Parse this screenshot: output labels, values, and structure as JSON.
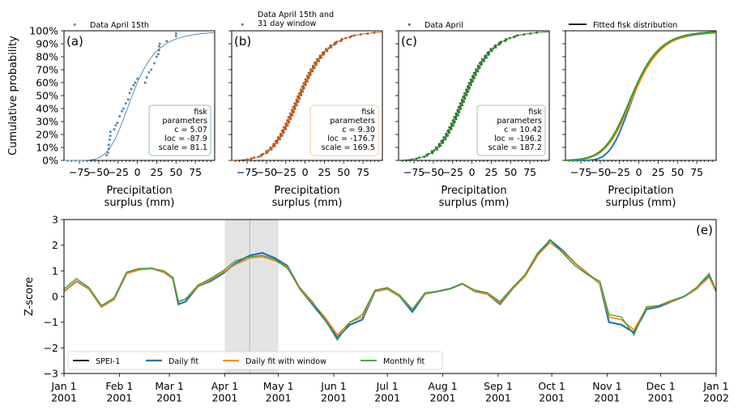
{
  "chart_data": [
    {
      "type": "scatter",
      "panel_label": "(a)",
      "legend": "Data April 15th",
      "ylabel": "Cumulative probability",
      "xlabel": "Precipitation\nsurplus (mm)",
      "xlim": [
        -95,
        100
      ],
      "ylim": [
        0,
        1
      ],
      "xticks": [
        -75,
        -50,
        -25,
        0,
        25,
        50,
        75
      ],
      "yticks": [
        "0%",
        "10%",
        "20%",
        "30%",
        "40%",
        "50%",
        "60%",
        "70%",
        "80%",
        "90%",
        "100%"
      ],
      "color": "#4f7fa6",
      "points": [
        [
          -40,
          0.04
        ],
        [
          -38,
          0.06
        ],
        [
          -37,
          0.09
        ],
        [
          -37,
          0.12
        ],
        [
          -36,
          0.16
        ],
        [
          -35,
          0.19
        ],
        [
          -35,
          0.22
        ],
        [
          -30,
          0.24
        ],
        [
          -28,
          0.27
        ],
        [
          -26,
          0.29
        ],
        [
          -23,
          0.34
        ],
        [
          -20,
          0.38
        ],
        [
          -18,
          0.4
        ],
        [
          -15,
          0.44
        ],
        [
          -12,
          0.47
        ],
        [
          -10,
          0.52
        ],
        [
          -8,
          0.55
        ],
        [
          -5,
          0.58
        ],
        [
          -3,
          0.6
        ],
        [
          0,
          0.63
        ],
        [
          10,
          0.6
        ],
        [
          12,
          0.64
        ],
        [
          15,
          0.68
        ],
        [
          18,
          0.7
        ],
        [
          22,
          0.75
        ],
        [
          25,
          0.8
        ],
        [
          27,
          0.82
        ],
        [
          28,
          0.85
        ],
        [
          28,
          0.88
        ],
        [
          29,
          0.9
        ],
        [
          38,
          0.92
        ],
        [
          50,
          0.96
        ],
        [
          50,
          0.98
        ]
      ],
      "params_label": "fisk\nparameters\nc = 5.07\nloc = -87.9\nscale = 81.1",
      "dist": {
        "c": 5.07,
        "loc": -87.9,
        "scale": 81.1
      }
    },
    {
      "type": "scatter",
      "panel_label": "(b)",
      "legend": "Data April 15th and\n31 day window",
      "xlabel": "Precipitation\nsurplus (mm)",
      "xlim": [
        -95,
        100
      ],
      "ylim": [
        0,
        1
      ],
      "xticks": [
        -75,
        -50,
        -25,
        0,
        25,
        50,
        75
      ],
      "color": "#b65a1a",
      "params_label": "fisk\nparameters\nc = 9.30\nloc = -176.7\nscale = 169.5",
      "dist": {
        "c": 9.3,
        "loc": -176.7,
        "scale": 169.5
      }
    },
    {
      "type": "scatter",
      "panel_label": "(c)",
      "legend": "Data April",
      "xlabel": "Precipitation\nsurplus (mm)",
      "xlim": [
        -95,
        100
      ],
      "ylim": [
        0,
        1
      ],
      "xticks": [
        -75,
        -50,
        -25,
        0,
        25,
        50,
        75
      ],
      "color": "#2e7a2e",
      "params_label": "fisk\nparameters\nc = 10.42\nloc = -196.2\nscale = 187.2",
      "dist": {
        "c": 10.42,
        "loc": -196.2,
        "scale": 187.2
      }
    },
    {
      "type": "line",
      "panel_label": "",
      "legend": "Fitted fisk distribution",
      "xlabel": "Precipitation\nsurplus (mm)",
      "xlim": [
        -95,
        100
      ],
      "ylim": [
        0,
        1
      ],
      "xticks": [
        -75,
        -50,
        -25,
        0,
        25,
        50,
        75
      ],
      "series": [
        {
          "name": "Daily fit",
          "color": "#1f77b4",
          "dist": {
            "c": 5.07,
            "loc": -87.9,
            "scale": 81.1
          }
        },
        {
          "name": "Daily fit with window",
          "color": "#ff7f0e",
          "dist": {
            "c": 9.3,
            "loc": -176.7,
            "scale": 169.5
          }
        },
        {
          "name": "Monthly fit",
          "color": "#2ca02c",
          "dist": {
            "c": 10.42,
            "loc": -196.2,
            "scale": 187.2
          }
        }
      ]
    },
    {
      "type": "line",
      "panel_label": "(e)",
      "ylabel": "Z-score",
      "ylim": [
        -3,
        3
      ],
      "yticks": [
        -3,
        -2,
        -1,
        0,
        1,
        2,
        3
      ],
      "xlim": [
        "2001-01-01",
        "2002-01-01"
      ],
      "xticks": [
        "Jan 1\n2001",
        "Feb 1\n2001",
        "Mar 1\n2001",
        "Apr 1\n2001",
        "May 1\n2001",
        "Jun 1\n2001",
        "Jul 1\n2001",
        "Aug 1\n2001",
        "Sep 1\n2001",
        "Oct 1\n2001",
        "Nov 1\n2001",
        "Dec 1\n2001",
        "Jan 1\n2002"
      ],
      "xtick_dates": [
        "2001-01-01",
        "2001-02-01",
        "2001-03-01",
        "2001-04-01",
        "2001-05-01",
        "2001-06-01",
        "2001-07-01",
        "2001-08-01",
        "2001-09-01",
        "2001-10-01",
        "2001-11-01",
        "2001-12-01",
        "2002-01-01"
      ],
      "highlight_window": [
        "2001-04-01",
        "2001-05-01"
      ],
      "marker_line": "2001-04-15",
      "legend": [
        "SPEI-1",
        "Daily fit",
        "Daily fit with window",
        "Monthly fit"
      ],
      "series": [
        {
          "name": "Daily fit",
          "color": "#1f77b4",
          "points": [
            [
              "2001-01-01",
              0.2
            ],
            [
              "2001-01-08",
              0.6
            ],
            [
              "2001-01-15",
              0.3
            ],
            [
              "2001-01-22",
              -0.4
            ],
            [
              "2001-01-29",
              -0.1
            ],
            [
              "2001-02-05",
              0.9
            ],
            [
              "2001-02-12",
              1.05
            ],
            [
              "2001-02-19",
              1.1
            ],
            [
              "2001-02-26",
              0.95
            ],
            [
              "2001-03-03",
              0.7
            ],
            [
              "2001-03-06",
              -0.3
            ],
            [
              "2001-03-10",
              -0.2
            ],
            [
              "2001-03-17",
              0.4
            ],
            [
              "2001-03-24",
              0.6
            ],
            [
              "2001-03-31",
              0.9
            ],
            [
              "2001-04-07",
              1.3
            ],
            [
              "2001-04-15",
              1.6
            ],
            [
              "2001-04-22",
              1.7
            ],
            [
              "2001-04-29",
              1.5
            ],
            [
              "2001-05-06",
              1.2
            ],
            [
              "2001-05-13",
              0.3
            ],
            [
              "2001-05-20",
              -0.3
            ],
            [
              "2001-05-27",
              -0.9
            ],
            [
              "2001-06-03",
              -1.6
            ],
            [
              "2001-06-10",
              -1.1
            ],
            [
              "2001-06-17",
              -0.9
            ],
            [
              "2001-06-24",
              0.2
            ],
            [
              "2001-07-01",
              0.3
            ],
            [
              "2001-07-08",
              0.0
            ],
            [
              "2001-07-15",
              -0.6
            ],
            [
              "2001-07-22",
              0.1
            ],
            [
              "2001-07-29",
              0.2
            ],
            [
              "2001-08-05",
              0.3
            ],
            [
              "2001-08-12",
              0.5
            ],
            [
              "2001-08-19",
              0.2
            ],
            [
              "2001-08-26",
              0.1
            ],
            [
              "2001-09-02",
              -0.3
            ],
            [
              "2001-09-09",
              0.3
            ],
            [
              "2001-09-16",
              0.8
            ],
            [
              "2001-09-23",
              1.6
            ],
            [
              "2001-09-30",
              2.2
            ],
            [
              "2001-10-07",
              1.8
            ],
            [
              "2001-10-14",
              1.3
            ],
            [
              "2001-10-21",
              0.9
            ],
            [
              "2001-10-28",
              0.5
            ],
            [
              "2001-11-02",
              -1.0
            ],
            [
              "2001-11-09",
              -1.1
            ],
            [
              "2001-11-16",
              -1.4
            ],
            [
              "2001-11-23",
              -0.5
            ],
            [
              "2001-11-30",
              -0.4
            ],
            [
              "2001-12-07",
              -0.2
            ],
            [
              "2001-12-14",
              0.0
            ],
            [
              "2001-12-21",
              0.3
            ],
            [
              "2001-12-28",
              0.8
            ],
            [
              "2002-01-01",
              0.2
            ]
          ]
        },
        {
          "name": "Daily fit with window",
          "color": "#ff7f0e",
          "points": [
            [
              "2001-01-01",
              0.2
            ],
            [
              "2001-01-08",
              0.6
            ],
            [
              "2001-01-15",
              0.3
            ],
            [
              "2001-01-22",
              -0.4
            ],
            [
              "2001-01-29",
              -0.1
            ],
            [
              "2001-02-05",
              0.9
            ],
            [
              "2001-02-12",
              1.05
            ],
            [
              "2001-02-19",
              1.1
            ],
            [
              "2001-02-26",
              0.95
            ],
            [
              "2001-03-03",
              0.7
            ],
            [
              "2001-03-06",
              -0.2
            ],
            [
              "2001-03-10",
              -0.1
            ],
            [
              "2001-03-17",
              0.4
            ],
            [
              "2001-03-24",
              0.65
            ],
            [
              "2001-03-31",
              0.95
            ],
            [
              "2001-04-07",
              1.25
            ],
            [
              "2001-04-15",
              1.5
            ],
            [
              "2001-04-22",
              1.55
            ],
            [
              "2001-04-29",
              1.4
            ],
            [
              "2001-05-06",
              1.15
            ],
            [
              "2001-05-13",
              0.3
            ],
            [
              "2001-05-20",
              -0.25
            ],
            [
              "2001-05-27",
              -0.8
            ],
            [
              "2001-06-03",
              -1.5
            ],
            [
              "2001-06-10",
              -1.0
            ],
            [
              "2001-06-17",
              -0.8
            ],
            [
              "2001-06-24",
              0.2
            ],
            [
              "2001-07-01",
              0.3
            ],
            [
              "2001-07-08",
              0.0
            ],
            [
              "2001-07-15",
              -0.5
            ],
            [
              "2001-07-22",
              0.1
            ],
            [
              "2001-07-29",
              0.2
            ],
            [
              "2001-08-05",
              0.3
            ],
            [
              "2001-08-12",
              0.5
            ],
            [
              "2001-08-19",
              0.2
            ],
            [
              "2001-08-26",
              0.1
            ],
            [
              "2001-09-02",
              -0.25
            ],
            [
              "2001-09-09",
              0.3
            ],
            [
              "2001-09-16",
              0.8
            ],
            [
              "2001-09-23",
              1.6
            ],
            [
              "2001-09-30",
              2.1
            ],
            [
              "2001-10-07",
              1.75
            ],
            [
              "2001-10-14",
              1.3
            ],
            [
              "2001-10-21",
              0.9
            ],
            [
              "2001-10-28",
              0.5
            ],
            [
              "2001-11-02",
              -0.8
            ],
            [
              "2001-11-09",
              -0.9
            ],
            [
              "2001-11-16",
              -1.3
            ],
            [
              "2001-11-23",
              -0.45
            ],
            [
              "2001-11-30",
              -0.35
            ],
            [
              "2001-12-07",
              -0.2
            ],
            [
              "2001-12-14",
              0.0
            ],
            [
              "2001-12-21",
              0.3
            ],
            [
              "2001-12-28",
              0.75
            ],
            [
              "2002-01-01",
              0.2
            ]
          ]
        },
        {
          "name": "Monthly fit",
          "color": "#2ca02c",
          "points": [
            [
              "2001-01-01",
              0.3
            ],
            [
              "2001-01-08",
              0.7
            ],
            [
              "2001-01-15",
              0.35
            ],
            [
              "2001-01-22",
              -0.35
            ],
            [
              "2001-01-29",
              -0.05
            ],
            [
              "2001-02-05",
              0.95
            ],
            [
              "2001-02-12",
              1.1
            ],
            [
              "2001-02-19",
              1.1
            ],
            [
              "2001-02-26",
              1.0
            ],
            [
              "2001-03-03",
              0.75
            ],
            [
              "2001-03-06",
              -0.2
            ],
            [
              "2001-03-10",
              -0.1
            ],
            [
              "2001-03-17",
              0.45
            ],
            [
              "2001-03-24",
              0.7
            ],
            [
              "2001-03-31",
              1.0
            ],
            [
              "2001-04-07",
              1.4
            ],
            [
              "2001-04-15",
              1.55
            ],
            [
              "2001-04-22",
              1.6
            ],
            [
              "2001-04-29",
              1.45
            ],
            [
              "2001-05-06",
              1.1
            ],
            [
              "2001-05-13",
              0.35
            ],
            [
              "2001-05-20",
              -0.2
            ],
            [
              "2001-05-27",
              -0.9
            ],
            [
              "2001-06-03",
              -1.7
            ],
            [
              "2001-06-10",
              -1.0
            ],
            [
              "2001-06-17",
              -0.7
            ],
            [
              "2001-06-24",
              0.25
            ],
            [
              "2001-07-01",
              0.35
            ],
            [
              "2001-07-08",
              0.05
            ],
            [
              "2001-07-15",
              -0.5
            ],
            [
              "2001-07-22",
              0.15
            ],
            [
              "2001-07-29",
              0.2
            ],
            [
              "2001-08-05",
              0.3
            ],
            [
              "2001-08-12",
              0.5
            ],
            [
              "2001-08-19",
              0.25
            ],
            [
              "2001-08-26",
              0.15
            ],
            [
              "2001-09-02",
              -0.2
            ],
            [
              "2001-09-09",
              0.35
            ],
            [
              "2001-09-16",
              0.85
            ],
            [
              "2001-09-23",
              1.7
            ],
            [
              "2001-09-30",
              2.2
            ],
            [
              "2001-10-07",
              1.7
            ],
            [
              "2001-10-14",
              1.2
            ],
            [
              "2001-10-21",
              0.85
            ],
            [
              "2001-10-28",
              0.6
            ],
            [
              "2001-11-02",
              -0.7
            ],
            [
              "2001-11-09",
              -0.8
            ],
            [
              "2001-11-16",
              -1.5
            ],
            [
              "2001-11-23",
              -0.4
            ],
            [
              "2001-11-30",
              -0.35
            ],
            [
              "2001-12-07",
              -0.15
            ],
            [
              "2001-12-14",
              0.0
            ],
            [
              "2001-12-21",
              0.35
            ],
            [
              "2001-12-28",
              0.9
            ],
            [
              "2002-01-01",
              0.25
            ]
          ]
        }
      ]
    }
  ]
}
